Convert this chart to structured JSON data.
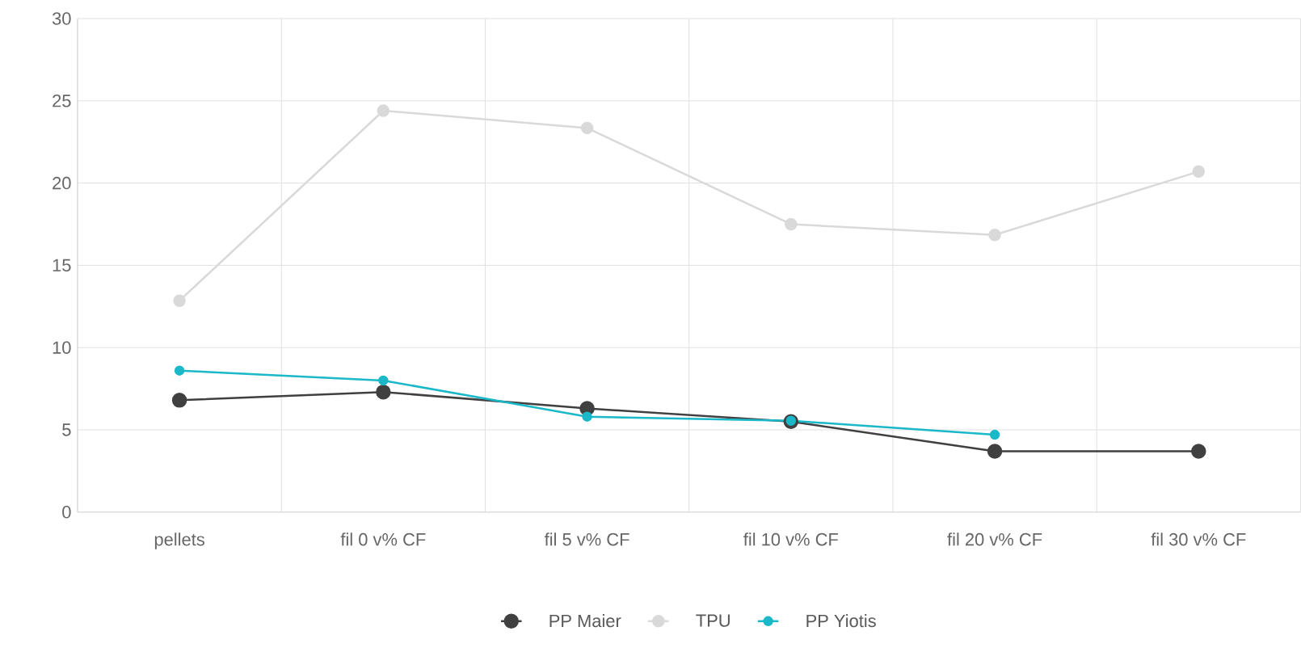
{
  "chart_data": {
    "type": "line",
    "categories": [
      "pellets",
      "fil 0 v% CF",
      "fil 5 v% CF",
      "fil 10 v% CF",
      "fil 20 v% CF",
      "fil 30 v% CF"
    ],
    "series": [
      {
        "name": "PP Maier",
        "color": "#404040",
        "values": [
          6.8,
          7.3,
          6.3,
          5.5,
          3.7,
          3.7
        ]
      },
      {
        "name": "TPU",
        "color": "#d9d9d9",
        "values": [
          12.85,
          24.4,
          23.35,
          17.5,
          16.85,
          20.7
        ]
      },
      {
        "name": "PP Yiotis",
        "color": "#1ab8c8",
        "values": [
          8.6,
          8.0,
          5.8,
          5.55,
          4.7,
          null
        ]
      }
    ],
    "ylim": [
      0,
      30
    ],
    "yticks": [
      0,
      5,
      10,
      15,
      20,
      25,
      30
    ],
    "grid": true,
    "legend": "bottom",
    "marker": "circle",
    "line_style": "solid"
  }
}
